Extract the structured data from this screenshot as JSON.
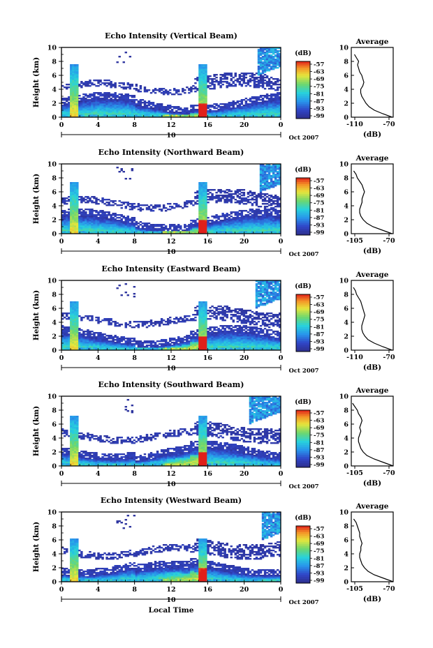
{
  "figure": {
    "xlabel_bottom": "Local Time",
    "date_label": "Oct 2007",
    "avg_title": "Average",
    "avg_xlabel": "(dB)",
    "colorbar_unit": "(dB)",
    "colorbar_ticks": [
      "-57",
      "-63",
      "-69",
      "-75",
      "-81",
      "-87",
      "-93",
      "-99"
    ],
    "colors": {
      "frame": "#000000",
      "low": "#2e2e8c",
      "high": "#e0201a"
    }
  },
  "chart_data": [
    {
      "type": "heatmap",
      "title": "Echo Intensity (Vertical Beam)",
      "ylabel": "Height (km)",
      "xlim": [
        0,
        24
      ],
      "ylim": [
        0,
        10
      ],
      "x_ticks": [
        "0",
        "4",
        "8",
        "12",
        "16",
        "20",
        "0"
      ],
      "y_ticks": [
        "0",
        "2",
        "4",
        "6",
        "8",
        "10"
      ],
      "date_tick": "10",
      "colorbar_range_db": [
        -99,
        -57
      ],
      "features": {
        "spike_times_hr": [
          1.3,
          15.5
        ],
        "spike_top_km": [
          7.6,
          7.6
        ],
        "upper_echo_start_hr": 21.5
      },
      "average_profile": {
        "xlim": [
          -110,
          -70
        ],
        "x_ticks": [
          "-110",
          "-70"
        ],
        "y_ticks": [
          "0",
          "2",
          "4",
          "6",
          "8",
          "10"
        ],
        "height_km": [
          0,
          0.5,
          1,
          1.5,
          2,
          2.5,
          3,
          3.5,
          4,
          4.5,
          5,
          5.5,
          6,
          6.5,
          7,
          7.5,
          8,
          8.5,
          9
        ],
        "db": [
          -71,
          -80,
          -88,
          -93,
          -96,
          -98,
          -100,
          -101,
          -101,
          -99,
          -98,
          -99,
          -100,
          -102,
          -103,
          -104,
          -103,
          -105,
          -107
        ]
      }
    },
    {
      "type": "heatmap",
      "title": "Echo Intensity (Northward Beam)",
      "ylabel": "Height (km)",
      "xlim": [
        0,
        24
      ],
      "ylim": [
        0,
        10
      ],
      "x_ticks": [
        "0",
        "4",
        "8",
        "12",
        "16",
        "20",
        "0"
      ],
      "y_ticks": [
        "0",
        "2",
        "4",
        "6",
        "8",
        "10"
      ],
      "date_tick": "10",
      "colorbar_range_db": [
        -99,
        -57
      ],
      "features": {
        "spike_times_hr": [
          1.3,
          15.5
        ],
        "spike_top_km": [
          7.4,
          7.4
        ],
        "upper_echo_start_hr": 21.8
      },
      "average_profile": {
        "xlim": [
          -105,
          -70
        ],
        "x_ticks": [
          "-105",
          "-70"
        ],
        "y_ticks": [
          "0",
          "2",
          "4",
          "6",
          "8",
          "10"
        ],
        "height_km": [
          0,
          0.5,
          1,
          1.5,
          2,
          2.5,
          3,
          3.5,
          4,
          4.5,
          5,
          5.5,
          6,
          6.5,
          7,
          7.5,
          8,
          8.5,
          9
        ],
        "db": [
          -71,
          -79,
          -87,
          -92,
          -95,
          -97,
          -98,
          -98,
          -97,
          -96,
          -96,
          -95,
          -94,
          -95,
          -96,
          -98,
          -100,
          -101,
          -103
        ]
      }
    },
    {
      "type": "heatmap",
      "title": "Echo Intensity (Eastward Beam)",
      "ylabel": "Height (km)",
      "xlim": [
        0,
        24
      ],
      "ylim": [
        0,
        10
      ],
      "x_ticks": [
        "0",
        "4",
        "8",
        "12",
        "16",
        "20",
        "0"
      ],
      "y_ticks": [
        "0",
        "2",
        "4",
        "6",
        "8",
        "10"
      ],
      "date_tick": "10",
      "colorbar_range_db": [
        -99,
        -57
      ],
      "features": {
        "spike_times_hr": [
          1.3,
          15.5
        ],
        "spike_top_km": [
          7.0,
          7.0
        ],
        "upper_echo_start_hr": 21.3
      },
      "average_profile": {
        "xlim": [
          -110,
          -70
        ],
        "x_ticks": [
          "-110",
          "-70"
        ],
        "y_ticks": [
          "0",
          "2",
          "4",
          "6",
          "8",
          "10"
        ],
        "height_km": [
          0,
          0.5,
          1,
          1.5,
          2,
          2.5,
          3,
          3.5,
          4,
          4.5,
          5,
          5.5,
          6,
          6.5,
          7,
          7.5,
          8,
          8.5,
          9
        ],
        "db": [
          -71,
          -80,
          -88,
          -94,
          -97,
          -99,
          -100,
          -100,
          -99,
          -98,
          -97,
          -98,
          -99,
          -100,
          -101,
          -103,
          -105,
          -106,
          -108
        ]
      }
    },
    {
      "type": "heatmap",
      "title": "Echo Intensity (Southward Beam)",
      "ylabel": "Height (km)",
      "xlim": [
        0,
        24
      ],
      "ylim": [
        0,
        10
      ],
      "x_ticks": [
        "0",
        "4",
        "8",
        "12",
        "16",
        "20",
        "0"
      ],
      "y_ticks": [
        "0",
        "2",
        "4",
        "6",
        "8",
        "10"
      ],
      "date_tick": "10",
      "colorbar_range_db": [
        -99,
        -57
      ],
      "features": {
        "spike_times_hr": [
          1.3,
          15.5
        ],
        "spike_top_km": [
          7.2,
          7.2
        ],
        "upper_echo_start_hr": 20.5
      },
      "average_profile": {
        "xlim": [
          -105,
          -70
        ],
        "x_ticks": [
          "-105",
          "-70"
        ],
        "y_ticks": [
          "0",
          "2",
          "4",
          "6",
          "8",
          "10"
        ],
        "height_km": [
          0,
          0.5,
          1,
          1.5,
          2,
          2.5,
          3,
          3.5,
          4,
          4.5,
          5,
          5.5,
          6,
          6.5,
          7,
          7.5,
          8,
          8.5,
          9
        ],
        "db": [
          -70,
          -78,
          -86,
          -92,
          -95,
          -97,
          -98,
          -99,
          -99,
          -98,
          -97,
          -98,
          -97,
          -96,
          -97,
          -99,
          -100,
          -102,
          -104
        ]
      }
    },
    {
      "type": "heatmap",
      "title": "Echo Intensity (Westward Beam)",
      "ylabel": "Height (km)",
      "xlim": [
        0,
        24
      ],
      "ylim": [
        0,
        10
      ],
      "x_ticks": [
        "0",
        "4",
        "8",
        "12",
        "16",
        "20",
        "0"
      ],
      "y_ticks": [
        "0",
        "2",
        "4",
        "6",
        "8",
        "10"
      ],
      "date_tick": "10",
      "colorbar_range_db": [
        -99,
        -57
      ],
      "features": {
        "spike_times_hr": [
          1.3,
          15.5
        ],
        "spike_top_km": [
          6.2,
          6.2
        ],
        "upper_echo_start_hr": 22.0
      },
      "average_profile": {
        "xlim": [
          -105,
          -70
        ],
        "x_ticks": [
          "-105",
          "-70"
        ],
        "y_ticks": [
          "0",
          "2",
          "4",
          "6",
          "8",
          "10"
        ],
        "height_km": [
          0,
          0.5,
          1,
          1.5,
          2,
          2.5,
          3,
          3.5,
          4,
          4.5,
          5,
          5.5,
          6,
          6.5,
          7,
          7.5,
          8,
          8.5,
          9
        ],
        "db": [
          -70,
          -78,
          -86,
          -91,
          -94,
          -96,
          -97,
          -98,
          -98,
          -97,
          -97,
          -96,
          -97,
          -98,
          -98,
          -99,
          -100,
          -101,
          -103
        ]
      }
    }
  ]
}
